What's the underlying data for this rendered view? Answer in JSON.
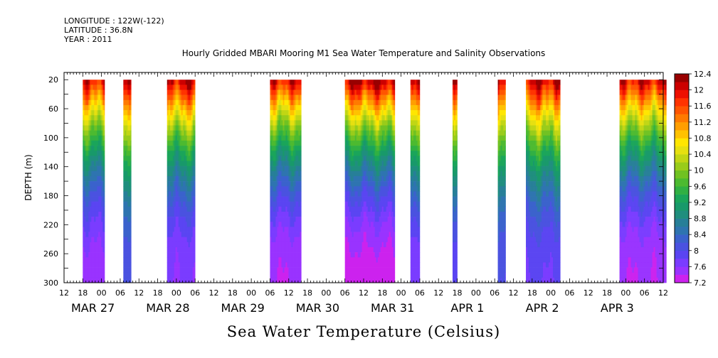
{
  "header": {
    "longitude": "LONGITUDE : 122W(-122)",
    "latitude": "LATITUDE : 36.8N",
    "year": "YEAR : 2011"
  },
  "chart_data": {
    "type": "heatmap",
    "title": "Hourly Gridded MBARI Mooring M1 Sea Water Temperature and Salinity Observations",
    "xlabel": "Sea Water Temperature (Celsius)",
    "ylabel": "DEPTH (m)",
    "x_units": "hours since MAR 27 00:00",
    "xlim": [
      -12,
      180
    ],
    "ylim": [
      300,
      10
    ],
    "y_reversed": true,
    "y_ticks": [
      20,
      60,
      100,
      140,
      180,
      220,
      260,
      300
    ],
    "hour_tick_labels": [
      "12",
      "18",
      "00",
      "06",
      "12",
      "18",
      "00",
      "06",
      "12",
      "18",
      "00",
      "06",
      "12",
      "18",
      "00",
      "06",
      "12",
      "18",
      "00",
      "06",
      "12",
      "18",
      "00",
      "06",
      "12",
      "18",
      "00",
      "06",
      "12",
      "18",
      "00",
      "06",
      "12"
    ],
    "date_labels": [
      {
        "label": "MAR 27",
        "hour": 0
      },
      {
        "label": "MAR 28",
        "hour": 24
      },
      {
        "label": "MAR 29",
        "hour": 48
      },
      {
        "label": "MAR 30",
        "hour": 72
      },
      {
        "label": "MAR 31",
        "hour": 96
      },
      {
        "label": "APR  1",
        "hour": 120
      },
      {
        "label": "APR  2",
        "hour": 144
      },
      {
        "label": "APR  3",
        "hour": 168
      }
    ],
    "colorbar": {
      "levels": [
        7.2,
        7.4,
        7.6,
        7.8,
        8.0,
        8.2,
        8.4,
        8.6,
        8.8,
        9.0,
        9.2,
        9.4,
        9.6,
        9.8,
        10.0,
        10.2,
        10.4,
        10.6,
        10.8,
        11.0,
        11.2,
        11.4,
        11.6,
        11.8,
        12.0,
        12.2,
        12.4
      ],
      "labels": [
        "12.4",
        "12",
        "11.6",
        "11.2",
        "10.8",
        "10.4",
        "10",
        "9.6",
        "9.2",
        "8.8",
        "8.4",
        "8",
        "7.6",
        "7.2"
      ],
      "colors": [
        "#cc22ee",
        "#9933ff",
        "#7a3cff",
        "#5a45f2",
        "#4a52e0",
        "#3a62cc",
        "#2e74b0",
        "#277f98",
        "#1f8e7e",
        "#18996a",
        "#1aa55a",
        "#30b043",
        "#4cba30",
        "#70c222",
        "#99cc1a",
        "#c1d614",
        "#e6e010",
        "#ffe600",
        "#ffc200",
        "#ff9e00",
        "#ff7a00",
        "#ff5500",
        "#ff3300",
        "#ee1000",
        "#cc0000",
        "#990000"
      ]
    },
    "segments": [
      {
        "start": -6,
        "end": 1,
        "t20": 12.0,
        "t300": 7.5
      },
      {
        "start": 7,
        "end": 9.5,
        "t20": 12.0,
        "t300": 8.0
      },
      {
        "start": 21,
        "end": 30,
        "t20": 12.2,
        "t300": 7.6
      },
      {
        "start": 54,
        "end": 64,
        "t20": 12.0,
        "t300": 7.4
      },
      {
        "start": 78,
        "end": 94,
        "t20": 12.3,
        "t300": 7.3
      },
      {
        "start": 99,
        "end": 102,
        "t20": 12.0,
        "t300": 7.6
      },
      {
        "start": 112.5,
        "end": 114,
        "t20": 12.0,
        "t300": 7.8
      },
      {
        "start": 127,
        "end": 129.5,
        "t20": 12.0,
        "t300": 8.0
      },
      {
        "start": 136,
        "end": 147,
        "t20": 12.2,
        "t300": 7.8
      },
      {
        "start": 166,
        "end": 181,
        "t20": 12.1,
        "t300": 7.4
      }
    ]
  }
}
